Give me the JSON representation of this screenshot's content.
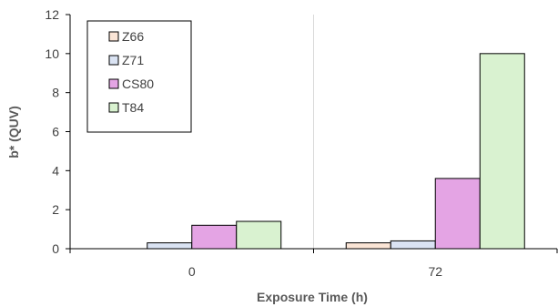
{
  "chart_data": {
    "type": "bar",
    "title": "",
    "xlabel": "Exposure Time (h)",
    "ylabel": "b* (QUV)",
    "categories": [
      "0",
      "72"
    ],
    "ylim": [
      0,
      12
    ],
    "yticks": [
      "0",
      "2",
      "4",
      "6",
      "8",
      "10",
      "12"
    ],
    "grid": "vertical",
    "legend_position": "top-left",
    "series": [
      {
        "name": "Z66",
        "color": "#fbe5d6",
        "values": [
          0,
          0.3
        ]
      },
      {
        "name": "Z71",
        "color": "#dae3f3",
        "values": [
          0.3,
          0.4
        ]
      },
      {
        "name": "CS80",
        "color": "#e4a4e4",
        "values": [
          1.2,
          3.6
        ]
      },
      {
        "name": "T84",
        "color": "#d9f2d0",
        "values": [
          1.4,
          10.0
        ]
      }
    ]
  }
}
